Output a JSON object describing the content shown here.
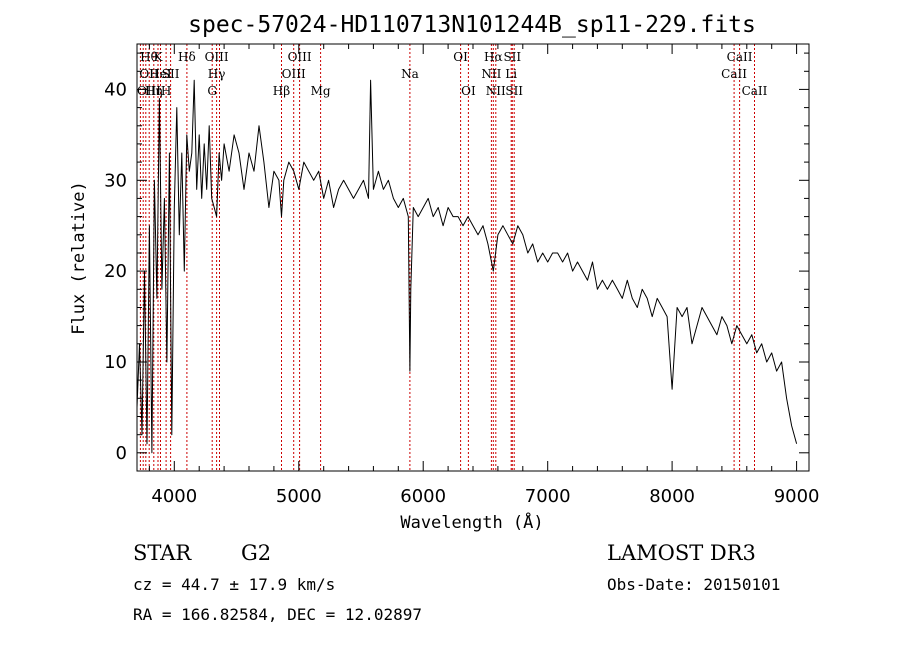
{
  "chart_data": {
    "type": "line",
    "title": "spec-57024-HD110713N101244B_sp11-229.fits",
    "xlabel": "Wavelength (Å)",
    "ylabel": "Flux (relative)",
    "xlim": [
      3700,
      9100
    ],
    "ylim": [
      -2,
      45
    ],
    "xticks": [
      4000,
      5000,
      6000,
      7000,
      8000,
      9000
    ],
    "yticks": [
      0,
      10,
      20,
      30,
      40
    ],
    "grid": false,
    "series": [
      {
        "name": "flux",
        "x": [
          3700,
          3720,
          3740,
          3760,
          3780,
          3800,
          3820,
          3840,
          3860,
          3880,
          3900,
          3920,
          3940,
          3960,
          3980,
          4000,
          4020,
          4040,
          4060,
          4080,
          4100,
          4120,
          4140,
          4160,
          4180,
          4200,
          4220,
          4240,
          4260,
          4280,
          4300,
          4320,
          4340,
          4360,
          4380,
          4400,
          4440,
          4480,
          4520,
          4560,
          4600,
          4640,
          4680,
          4720,
          4760,
          4800,
          4840,
          4861,
          4880,
          4920,
          4960,
          5000,
          5040,
          5080,
          5120,
          5160,
          5200,
          5240,
          5280,
          5320,
          5360,
          5400,
          5440,
          5480,
          5520,
          5560,
          5577,
          5600,
          5640,
          5680,
          5720,
          5760,
          5800,
          5840,
          5880,
          5893,
          5900,
          5920,
          5960,
          6000,
          6040,
          6080,
          6120,
          6160,
          6200,
          6240,
          6280,
          6320,
          6360,
          6400,
          6440,
          6480,
          6520,
          6563,
          6600,
          6640,
          6680,
          6720,
          6760,
          6800,
          6840,
          6880,
          6920,
          6960,
          7000,
          7040,
          7080,
          7120,
          7160,
          7200,
          7240,
          7280,
          7320,
          7360,
          7400,
          7440,
          7480,
          7520,
          7560,
          7600,
          7640,
          7680,
          7720,
          7760,
          7800,
          7840,
          7880,
          7920,
          7960,
          8000,
          8040,
          8080,
          8120,
          8160,
          8200,
          8240,
          8280,
          8320,
          8360,
          8400,
          8440,
          8480,
          8520,
          8560,
          8600,
          8640,
          8680,
          8720,
          8760,
          8800,
          8840,
          8880,
          8920,
          8960,
          9000
        ],
        "y": [
          5,
          12,
          2,
          20,
          1,
          25,
          0,
          30,
          17,
          39,
          18,
          28,
          10,
          33,
          2,
          27,
          38,
          24,
          33,
          20,
          35,
          31,
          33,
          41,
          29,
          35,
          28,
          34,
          29,
          36,
          28,
          27,
          26,
          33,
          30,
          34,
          31,
          35,
          33,
          29,
          33,
          31,
          36,
          32,
          27,
          31,
          30,
          26,
          30,
          32,
          31,
          29,
          32,
          31,
          30,
          31,
          28,
          30,
          27,
          29,
          30,
          29,
          28,
          29,
          30,
          28,
          41,
          29,
          31,
          29,
          30,
          28,
          27,
          28,
          26,
          9,
          18,
          27,
          26,
          27,
          28,
          26,
          27,
          25,
          27,
          26,
          26,
          25,
          26,
          25,
          24,
          25,
          23,
          20,
          24,
          25,
          24,
          23,
          25,
          24,
          22,
          23,
          21,
          22,
          21,
          22,
          22,
          21,
          22,
          20,
          21,
          20,
          19,
          21,
          18,
          19,
          18,
          19,
          18,
          17,
          19,
          17,
          16,
          18,
          17,
          15,
          17,
          16,
          15,
          7,
          16,
          15,
          16,
          12,
          14,
          16,
          15,
          14,
          13,
          15,
          14,
          12,
          14,
          13,
          12,
          13,
          11,
          12,
          10,
          11,
          9,
          10,
          6,
          3,
          1
        ]
      }
    ],
    "line_markers": [
      {
        "wl": 3727,
        "labels": [
          "OII"
        ]
      },
      {
        "wl": 3750,
        "labels": [
          "OIII"
        ]
      },
      {
        "wl": 3771,
        "labels": [
          "Hθ"
        ]
      },
      {
        "wl": 3798,
        "labels": [
          "Hη"
        ]
      },
      {
        "wl": 3835,
        "labels": [
          "Hε"
        ]
      },
      {
        "wl": 3869,
        "labels": [
          "K"
        ]
      },
      {
        "wl": 3889,
        "labels": [
          "HeI"
        ]
      },
      {
        "wl": 3934,
        "labels": [
          "H"
        ]
      },
      {
        "wl": 3970,
        "labels": [
          "SII"
        ]
      },
      {
        "wl": 4101,
        "labels": [
          "Hδ"
        ]
      },
      {
        "wl": 4304,
        "labels": [
          "G"
        ]
      },
      {
        "wl": 4340,
        "labels": [
          "OIII",
          "Hγ"
        ]
      },
      {
        "wl": 4363,
        "labels": []
      },
      {
        "wl": 4861,
        "labels": [
          "Hβ"
        ]
      },
      {
        "wl": 4959,
        "labels": [
          "OIII"
        ]
      },
      {
        "wl": 5007,
        "labels": [
          "OIII"
        ]
      },
      {
        "wl": 5175,
        "labels": [
          "Mg"
        ]
      },
      {
        "wl": 5893,
        "labels": [
          "Na"
        ]
      },
      {
        "wl": 6300,
        "labels": [
          "OI"
        ]
      },
      {
        "wl": 6363,
        "labels": [
          "OI"
        ]
      },
      {
        "wl": 6548,
        "labels": [
          "NII"
        ]
      },
      {
        "wl": 6563,
        "labels": [
          "Hα"
        ]
      },
      {
        "wl": 6583,
        "labels": [
          "NII"
        ]
      },
      {
        "wl": 6707,
        "labels": [
          "Li"
        ]
      },
      {
        "wl": 6716,
        "labels": [
          "SII"
        ]
      },
      {
        "wl": 6731,
        "labels": [
          "SII"
        ]
      },
      {
        "wl": 8498,
        "labels": [
          "CaII"
        ]
      },
      {
        "wl": 8542,
        "labels": [
          "CaII"
        ]
      },
      {
        "wl": 8662,
        "labels": [
          "CaII"
        ]
      }
    ],
    "line_label_items": [
      {
        "text": "Hθ",
        "anchor": 3771,
        "row": 0
      },
      {
        "text": "K",
        "anchor": 3869,
        "row": 0
      },
      {
        "text": "Hδ",
        "anchor": 4101,
        "row": 0
      },
      {
        "text": "OIII",
        "anchor": 4340,
        "row": 0
      },
      {
        "text": "OIII",
        "anchor": 5007,
        "row": 0
      },
      {
        "text": "OI",
        "anchor": 6300,
        "row": 0
      },
      {
        "text": "Hα",
        "anchor": 6563,
        "row": 0
      },
      {
        "text": "SII",
        "anchor": 6716,
        "row": 0
      },
      {
        "text": "CaII",
        "anchor": 8542,
        "row": 0
      },
      {
        "text": "OII",
        "anchor": 3727,
        "row": 1
      },
      {
        "text": "HeI",
        "anchor": 3889,
        "row": 1
      },
      {
        "text": "SII",
        "anchor": 3970,
        "row": 1
      },
      {
        "text": "Hγ",
        "anchor": 4340,
        "row": 1
      },
      {
        "text": "OIII",
        "anchor": 4959,
        "row": 1
      },
      {
        "text": "Na",
        "anchor": 5893,
        "row": 1
      },
      {
        "text": "NII",
        "anchor": 6548,
        "row": 1
      },
      {
        "text": "Li",
        "anchor": 6707,
        "row": 1
      },
      {
        "text": "CaII",
        "anchor": 8498,
        "row": 1
      },
      {
        "text": "OIII",
        "anchor": 3750,
        "row": 2
      },
      {
        "text": "Hη",
        "anchor": 3835,
        "row": 2
      },
      {
        "text": "H",
        "anchor": 3934,
        "row": 2
      },
      {
        "text": "G",
        "anchor": 4304,
        "row": 2
      },
      {
        "text": "Hβ",
        "anchor": 4861,
        "row": 2
      },
      {
        "text": "Mg",
        "anchor": 5175,
        "row": 2
      },
      {
        "text": "OI",
        "anchor": 6363,
        "row": 2
      },
      {
        "text": "NII",
        "anchor": 6583,
        "row": 2
      },
      {
        "text": "SII",
        "anchor": 6731,
        "row": 2
      },
      {
        "text": "CaII",
        "anchor": 8662,
        "row": 2
      }
    ],
    "colors": {
      "spectrum": "#000000",
      "marker_line": "#cc0000",
      "axis": "#000000"
    }
  },
  "info": {
    "class_label": "STAR",
    "subclass": "G2",
    "survey": "LAMOST DR3",
    "cz": "cz = 44.7 ± 17.9 km/s",
    "obs_date": "Obs-Date: 20150101",
    "coords": "RA = 166.82584, DEC =  12.02897"
  }
}
